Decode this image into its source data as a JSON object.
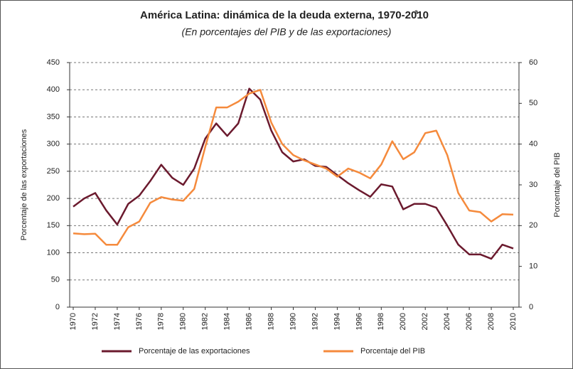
{
  "chart_data": {
    "type": "line",
    "title": "América Latina: dinámica de la deuda externa, 1970-2010",
    "title_note": "a",
    "subtitle": "(En porcentajes del PIB y de las exportaciones)",
    "ylabel": "Porcentaje de las exportaciones",
    "y2label": "Porcentaje del PIB",
    "x": [
      1970,
      1971,
      1972,
      1973,
      1974,
      1975,
      1976,
      1977,
      1978,
      1979,
      1980,
      1981,
      1982,
      1983,
      1984,
      1985,
      1986,
      1987,
      1988,
      1989,
      1990,
      1991,
      1992,
      1993,
      1994,
      1995,
      1996,
      1997,
      1998,
      1999,
      2000,
      2001,
      2002,
      2003,
      2004,
      2005,
      2006,
      2007,
      2008,
      2009,
      2010
    ],
    "xlim": [
      1970,
      2010
    ],
    "xticks": [
      1970,
      1972,
      1974,
      1976,
      1978,
      1980,
      1982,
      1984,
      1986,
      1988,
      1990,
      1992,
      1994,
      1996,
      1998,
      2000,
      2002,
      2004,
      2006,
      2008,
      2010
    ],
    "ylim": [
      0,
      450
    ],
    "yticks": [
      0,
      50,
      100,
      150,
      200,
      250,
      300,
      350,
      400,
      450
    ],
    "y2lim": [
      0,
      60
    ],
    "y2ticks": [
      0,
      10,
      20,
      30,
      40,
      50,
      60
    ],
    "grid": true,
    "legend": "bottom",
    "series": [
      {
        "name": "Porcentaje de las exportaciones",
        "color": "#6b1a2e",
        "axis": "y",
        "values": [
          185,
          200,
          210,
          178,
          152,
          190,
          205,
          232,
          262,
          238,
          225,
          255,
          310,
          338,
          315,
          338,
          402,
          382,
          325,
          285,
          268,
          272,
          260,
          258,
          243,
          228,
          215,
          203,
          226,
          222,
          180,
          190,
          190,
          183,
          150,
          115,
          97,
          97,
          89,
          115,
          108
        ]
      },
      {
        "name": "Porcentaje del PIB",
        "color": "#f58a3c",
        "axis": "y2",
        "values": [
          18.1,
          17.9,
          18,
          15.3,
          15.3,
          19.6,
          21,
          25.6,
          27,
          26.4,
          26.1,
          29,
          39.3,
          49,
          49,
          50.4,
          52.4,
          53.3,
          45.3,
          40,
          37.3,
          36,
          35,
          34,
          32,
          34,
          33,
          31.6,
          35,
          40.7,
          36.3,
          38,
          42.7,
          43.3,
          37.3,
          28,
          23.7,
          23.3,
          21,
          22.8,
          22.7
        ]
      }
    ]
  }
}
